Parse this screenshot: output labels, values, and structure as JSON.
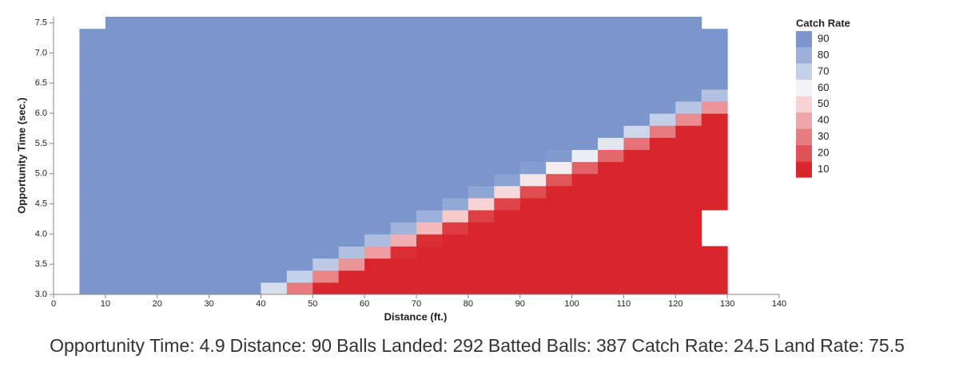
{
  "chart_data": {
    "type": "heatmap",
    "x_label": "Distance (ft.)",
    "y_label": "Opportunity Time (sec.)",
    "xlim": [
      0,
      140
    ],
    "ylim": [
      3.0,
      7.6
    ],
    "xticks": [
      0,
      10,
      20,
      30,
      40,
      50,
      60,
      70,
      80,
      90,
      100,
      110,
      120,
      130,
      140
    ],
    "yticks": [
      {
        "value": 3,
        "label": "3.0"
      },
      3.5,
      {
        "value": 4,
        "label": "4.0"
      },
      4.5,
      {
        "value": 5,
        "label": "5.0"
      },
      5.5,
      {
        "value": 6,
        "label": "6.0"
      },
      6.5,
      {
        "value": 7,
        "label": "7.0"
      },
      7.5
    ],
    "xbins": [
      5,
      10,
      15,
      20,
      25,
      30,
      35,
      40,
      45,
      50,
      55,
      60,
      65,
      70,
      75,
      80,
      85,
      90,
      95,
      100,
      105,
      110,
      115,
      120,
      125,
      130
    ],
    "ybins": [
      3.0,
      3.2,
      3.4,
      3.6,
      3.8,
      4.0,
      4.2,
      4.4,
      4.6,
      4.8,
      5.0,
      5.2,
      5.4,
      5.6,
      5.8,
      6.0,
      6.2,
      6.4,
      6.6,
      6.8,
      7.0,
      7.2,
      7.4,
      7.6
    ],
    "values": [
      [
        98,
        98,
        98,
        98,
        98,
        98,
        98,
        98,
        98,
        98,
        98,
        98,
        98,
        98,
        98,
        98,
        98,
        98,
        98,
        98,
        98,
        98,
        null
      ],
      [
        98,
        98,
        98,
        98,
        98,
        98,
        98,
        98,
        98,
        98,
        98,
        98,
        98,
        98,
        98,
        98,
        98,
        98,
        98,
        98,
        98,
        98,
        98
      ],
      [
        98,
        98,
        98,
        98,
        98,
        98,
        98,
        98,
        98,
        98,
        98,
        98,
        98,
        98,
        98,
        98,
        98,
        98,
        98,
        98,
        98,
        98,
        98
      ],
      [
        98,
        98,
        98,
        98,
        98,
        98,
        98,
        98,
        98,
        98,
        98,
        98,
        98,
        98,
        98,
        98,
        98,
        98,
        98,
        98,
        98,
        98,
        98
      ],
      [
        98,
        98,
        98,
        98,
        98,
        98,
        98,
        98,
        98,
        98,
        98,
        98,
        98,
        98,
        98,
        98,
        98,
        98,
        98,
        98,
        98,
        98,
        98
      ],
      [
        97,
        98,
        98,
        98,
        98,
        98,
        98,
        98,
        98,
        98,
        98,
        98,
        98,
        98,
        98,
        98,
        98,
        98,
        98,
        98,
        98,
        98,
        98
      ],
      [
        90,
        97,
        98,
        98,
        98,
        98,
        98,
        98,
        98,
        98,
        98,
        98,
        98,
        98,
        98,
        98,
        98,
        98,
        98,
        98,
        98,
        98,
        98
      ],
      [
        66,
        91,
        98,
        98,
        98,
        98,
        98,
        98,
        98,
        98,
        98,
        98,
        98,
        98,
        98,
        98,
        98,
        98,
        98,
        98,
        98,
        98,
        98
      ],
      [
        30,
        70,
        92,
        98,
        98,
        98,
        98,
        98,
        98,
        98,
        98,
        98,
        98,
        98,
        98,
        98,
        98,
        98,
        98,
        98,
        98,
        98,
        98
      ],
      [
        8,
        32,
        72,
        93,
        98,
        98,
        98,
        98,
        98,
        98,
        98,
        98,
        98,
        98,
        98,
        98,
        98,
        98,
        98,
        98,
        98,
        98,
        98
      ],
      [
        2,
        9,
        36,
        75,
        94,
        98,
        98,
        98,
        98,
        98,
        98,
        98,
        98,
        98,
        98,
        98,
        98,
        98,
        98,
        98,
        98,
        98,
        98
      ],
      [
        2,
        2,
        10,
        38,
        76,
        94,
        98,
        98,
        98,
        98,
        98,
        98,
        98,
        98,
        98,
        98,
        98,
        98,
        98,
        98,
        98,
        98,
        98
      ],
      [
        2,
        2,
        3,
        12,
        42,
        79,
        95,
        98,
        98,
        98,
        98,
        98,
        98,
        98,
        98,
        98,
        98,
        98,
        98,
        98,
        98,
        98,
        98
      ],
      [
        2,
        2,
        2,
        3,
        12,
        44,
        80,
        95,
        98,
        98,
        98,
        98,
        98,
        98,
        98,
        98,
        98,
        98,
        98,
        98,
        98,
        98,
        98
      ],
      [
        2,
        2,
        2,
        2,
        3,
        15,
        48,
        83,
        96,
        98,
        98,
        98,
        98,
        98,
        98,
        98,
        98,
        98,
        98,
        98,
        98,
        98,
        98
      ],
      [
        2,
        2,
        2,
        2,
        2,
        3,
        16,
        50,
        84,
        97,
        98,
        98,
        98,
        98,
        98,
        98,
        98,
        98,
        98,
        98,
        98,
        98,
        98
      ],
      [
        2,
        2,
        2,
        2,
        2,
        2,
        4,
        17,
        52,
        85,
        97,
        98,
        98,
        98,
        98,
        98,
        98,
        98,
        98,
        98,
        98,
        98,
        98
      ],
      [
        2,
        2,
        2,
        2,
        2,
        2,
        2,
        4,
        19,
        56,
        87,
        97,
        98,
        98,
        98,
        98,
        98,
        98,
        98,
        98,
        98,
        98,
        98
      ],
      [
        2,
        2,
        2,
        2,
        2,
        2,
        2,
        2,
        5,
        21,
        58,
        88,
        97,
        98,
        98,
        98,
        98,
        98,
        98,
        98,
        98,
        98,
        98
      ],
      [
        2,
        2,
        2,
        2,
        2,
        2,
        2,
        2,
        2,
        5,
        24,
        62,
        90,
        98,
        98,
        98,
        98,
        98,
        98,
        98,
        98,
        98,
        98
      ],
      [
        2,
        2,
        2,
        2,
        2,
        2,
        2,
        2,
        2,
        2,
        6,
        25,
        64,
        90,
        98,
        98,
        98,
        98,
        98,
        98,
        98,
        98,
        98
      ],
      [
        2,
        2,
        2,
        2,
        2,
        2,
        2,
        2,
        2,
        2,
        2,
        7,
        28,
        68,
        91,
        98,
        98,
        98,
        98,
        98,
        98,
        98,
        98
      ],
      [
        2,
        2,
        2,
        2,
        2,
        2,
        2,
        2,
        2,
        2,
        2,
        2,
        8,
        30,
        70,
        92,
        98,
        98,
        98,
        98,
        98,
        98,
        98
      ],
      [
        2,
        2,
        2,
        2,
        2,
        2,
        2,
        2,
        2,
        2,
        2,
        2,
        2,
        9,
        34,
        73,
        93,
        98,
        98,
        98,
        98,
        98,
        98
      ],
      [
        2,
        2,
        2,
        2,
        null,
        null,
        null,
        2,
        2,
        2,
        2,
        2,
        2,
        2,
        10,
        36,
        75,
        94,
        98,
        98,
        98,
        98,
        null
      ]
    ],
    "legend": {
      "title": "Catch Rate",
      "levels": [
        90,
        80,
        70,
        60,
        50,
        40,
        30,
        20,
        10
      ],
      "colors": [
        "#7a96cb",
        "#9cb0d9",
        "#c4d0e8",
        "#f4f4f6",
        "#f7d3d4",
        "#efa6a8",
        "#e77b7f",
        "#df5257",
        "#d8262c"
      ]
    },
    "readout": [
      {
        "label": "Opportunity Time:",
        "value": 4.9
      },
      {
        "label": "Distance:",
        "value": 90
      },
      {
        "label": "Balls Landed:",
        "value": 292
      },
      {
        "label": "Batted Balls:",
        "value": 387
      },
      {
        "label": "Catch Rate:",
        "value": 24.5
      },
      {
        "label": "Land Rate:",
        "value": 75.5
      }
    ]
  }
}
